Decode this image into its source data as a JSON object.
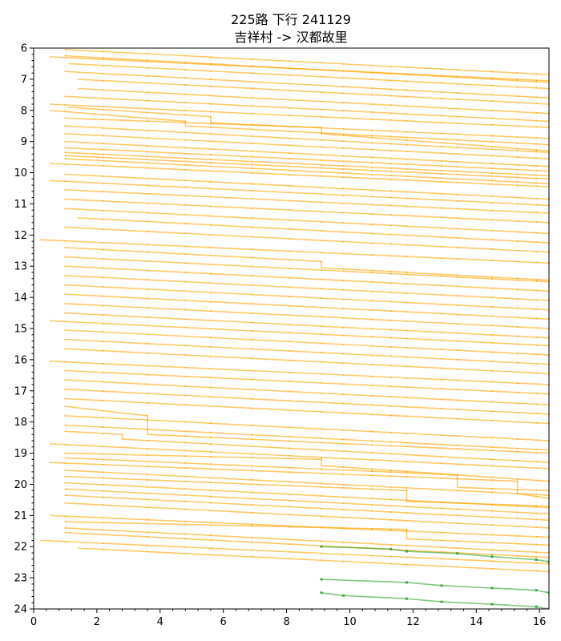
{
  "chart_data": {
    "type": "line",
    "title_line1": "225路 下行 241129",
    "title_line2": "吉祥村 -> 汉都故里",
    "xlabel": "",
    "ylabel": "",
    "xlim": [
      0,
      16.3
    ],
    "ylim": [
      24,
      6
    ],
    "y_inverted": true,
    "grid": false,
    "x_ticks": [
      "0",
      "2",
      "4",
      "6",
      "8",
      "10",
      "12",
      "14",
      "16"
    ],
    "y_ticks": [
      "6",
      "7",
      "8",
      "9",
      "10",
      "11",
      "12",
      "13",
      "14",
      "15",
      "16",
      "17",
      "18",
      "19",
      "20",
      "21",
      "22",
      "23",
      "24"
    ],
    "stops_x": [
      1.0,
      2.2,
      3.6,
      4.8,
      5.6,
      6.9,
      8.1,
      9.1,
      9.8,
      10.7,
      11.3,
      11.8,
      12.9,
      13.4,
      14.5,
      15.3,
      15.9,
      16.3
    ],
    "colors": {
      "scheduled": "#FFA500",
      "highlight": "#2CA02C"
    },
    "series": [
      {
        "color": "orange",
        "x": [
          0.5,
          16.3
        ],
        "y": [
          6.28,
          7.05
        ]
      },
      {
        "color": "orange",
        "x": [
          1.0,
          16.3
        ],
        "y": [
          6.05,
          6.85
        ]
      },
      {
        "color": "orange",
        "x": [
          1.0,
          16.3
        ],
        "y": [
          6.25,
          7.1
        ]
      },
      {
        "color": "orange",
        "x": [
          1.1,
          16.3
        ],
        "y": [
          6.5,
          7.3
        ]
      },
      {
        "color": "orange",
        "x": [
          1.0,
          16.3
        ],
        "y": [
          6.75,
          7.6
        ]
      },
      {
        "color": "orange",
        "x": [
          1.4,
          16.3
        ],
        "y": [
          7.0,
          7.8
        ]
      },
      {
        "color": "orange",
        "x": [
          1.4,
          16.3
        ],
        "y": [
          7.3,
          8.1
        ]
      },
      {
        "color": "orange",
        "x": [
          1.0,
          16.3
        ],
        "y": [
          7.55,
          8.35
        ]
      },
      {
        "color": "orange",
        "x": [
          0.5,
          16.3
        ],
        "y": [
          7.8,
          8.55
        ]
      },
      {
        "color": "orange",
        "x": [
          1.1,
          5.6,
          5.6,
          16.3
        ],
        "y": [
          7.9,
          8.2,
          8.4,
          8.9
        ]
      },
      {
        "color": "orange",
        "x": [
          0.5,
          4.8,
          4.8,
          16.3
        ],
        "y": [
          8.0,
          8.35,
          8.5,
          9.1
        ]
      },
      {
        "color": "orange",
        "x": [
          1.0,
          9.1,
          9.1,
          16.3
        ],
        "y": [
          8.25,
          8.55,
          8.75,
          9.3
        ]
      },
      {
        "color": "orange",
        "x": [
          1.0,
          16.3
        ],
        "y": [
          8.5,
          9.35
        ]
      },
      {
        "color": "orange",
        "x": [
          1.0,
          16.3
        ],
        "y": [
          8.75,
          9.55
        ]
      },
      {
        "color": "orange",
        "x": [
          1.0,
          16.3
        ],
        "y": [
          9.0,
          9.8
        ]
      },
      {
        "color": "orange",
        "x": [
          1.0,
          16.3
        ],
        "y": [
          9.2,
          9.95
        ]
      },
      {
        "color": "orange",
        "x": [
          1.0,
          16.3
        ],
        "y": [
          9.35,
          10.1
        ]
      },
      {
        "color": "orange",
        "x": [
          1.0,
          16.3
        ],
        "y": [
          9.45,
          10.2
        ]
      },
      {
        "color": "orange",
        "x": [
          1.0,
          16.3
        ],
        "y": [
          9.55,
          10.35
        ]
      },
      {
        "color": "orange",
        "x": [
          0.5,
          16.3
        ],
        "y": [
          9.7,
          10.45
        ]
      },
      {
        "color": "orange",
        "x": [
          1.0,
          16.3
        ],
        "y": [
          10.05,
          10.85
        ]
      },
      {
        "color": "orange",
        "x": [
          0.5,
          16.3
        ],
        "y": [
          10.25,
          11.05
        ]
      },
      {
        "color": "orange",
        "x": [
          1.0,
          16.3
        ],
        "y": [
          10.55,
          11.3
        ]
      },
      {
        "color": "orange",
        "x": [
          1.0,
          16.3
        ],
        "y": [
          10.85,
          11.6
        ]
      },
      {
        "color": "orange",
        "x": [
          1.0,
          16.3
        ],
        "y": [
          11.15,
          11.95
        ]
      },
      {
        "color": "orange",
        "x": [
          1.4,
          16.3
        ],
        "y": [
          11.45,
          12.25
        ]
      },
      {
        "color": "orange",
        "x": [
          1.0,
          16.3
        ],
        "y": [
          11.75,
          12.55
        ]
      },
      {
        "color": "orange",
        "x": [
          0.2,
          16.3
        ],
        "y": [
          12.15,
          12.9
        ]
      },
      {
        "color": "orange",
        "x": [
          1.0,
          9.1,
          9.1,
          16.3
        ],
        "y": [
          12.4,
          12.85,
          13.05,
          13.45
        ]
      },
      {
        "color": "orange",
        "x": [
          1.0,
          16.3
        ],
        "y": [
          12.7,
          13.5
        ]
      },
      {
        "color": "orange",
        "x": [
          1.0,
          16.3
        ],
        "y": [
          13.0,
          13.8
        ]
      },
      {
        "color": "orange",
        "x": [
          1.0,
          16.3
        ],
        "y": [
          13.3,
          14.1
        ]
      },
      {
        "color": "orange",
        "x": [
          1.0,
          16.3
        ],
        "y": [
          13.6,
          14.4
        ]
      },
      {
        "color": "orange",
        "x": [
          1.0,
          16.3
        ],
        "y": [
          13.9,
          14.7
        ]
      },
      {
        "color": "orange",
        "x": [
          1.0,
          16.3
        ],
        "y": [
          14.2,
          15.0
        ]
      },
      {
        "color": "orange",
        "x": [
          1.0,
          16.3
        ],
        "y": [
          14.5,
          15.3
        ]
      },
      {
        "color": "orange",
        "x": [
          0.5,
          16.3
        ],
        "y": [
          14.75,
          15.55
        ]
      },
      {
        "color": "orange",
        "x": [
          1.0,
          16.3
        ],
        "y": [
          15.05,
          15.85
        ]
      },
      {
        "color": "orange",
        "x": [
          1.0,
          16.3
        ],
        "y": [
          15.35,
          16.15
        ]
      },
      {
        "color": "orange",
        "x": [
          1.0,
          16.3
        ],
        "y": [
          15.65,
          16.45
        ]
      },
      {
        "color": "orange",
        "x": [
          0.5,
          16.3
        ],
        "y": [
          16.05,
          16.8
        ]
      },
      {
        "color": "orange",
        "x": [
          1.0,
          16.3
        ],
        "y": [
          16.35,
          17.1
        ]
      },
      {
        "color": "orange",
        "x": [
          1.0,
          16.3
        ],
        "y": [
          16.65,
          17.45
        ]
      },
      {
        "color": "orange",
        "x": [
          1.0,
          16.3
        ],
        "y": [
          16.95,
          17.75
        ]
      },
      {
        "color": "orange",
        "x": [
          1.0,
          16.3
        ],
        "y": [
          17.25,
          18.05
        ]
      },
      {
        "color": "orange",
        "x": [
          1.0,
          3.6,
          3.6,
          16.3
        ],
        "y": [
          17.5,
          17.8,
          18.4,
          19.0
        ]
      },
      {
        "color": "orange",
        "x": [
          1.0,
          16.3
        ],
        "y": [
          17.8,
          18.6
        ]
      },
      {
        "color": "orange",
        "x": [
          1.0,
          16.3
        ],
        "y": [
          18.1,
          18.9
        ]
      },
      {
        "color": "orange",
        "x": [
          1.0,
          2.8,
          2.8,
          16.3
        ],
        "y": [
          18.3,
          18.4,
          18.55,
          19.3
        ]
      },
      {
        "color": "orange",
        "x": [
          0.5,
          16.3
        ],
        "y": [
          18.7,
          19.5
        ]
      },
      {
        "color": "orange",
        "x": [
          1.0,
          9.1,
          9.1,
          16.3
        ],
        "y": [
          19.0,
          19.2,
          19.4,
          19.9
        ]
      },
      {
        "color": "orange",
        "x": [
          1.0,
          13.4,
          13.4,
          16.3
        ],
        "y": [
          19.15,
          19.7,
          20.1,
          20.2
        ]
      },
      {
        "color": "orange",
        "x": [
          0.5,
          15.3,
          15.3,
          16.3
        ],
        "y": [
          19.3,
          19.9,
          20.3,
          20.45
        ]
      },
      {
        "color": "orange",
        "x": [
          1.0,
          16.3
        ],
        "y": [
          19.55,
          20.35
        ]
      },
      {
        "color": "orange",
        "x": [
          1.0,
          11.8,
          11.8,
          16.3
        ],
        "y": [
          19.75,
          20.2,
          20.55,
          20.7
        ]
      },
      {
        "color": "orange",
        "x": [
          1.0,
          16.3
        ],
        "y": [
          19.95,
          20.75
        ]
      },
      {
        "color": "orange",
        "x": [
          1.0,
          16.3
        ],
        "y": [
          20.15,
          20.95
        ]
      },
      {
        "color": "orange",
        "x": [
          1.0,
          16.3
        ],
        "y": [
          20.35,
          21.15
        ]
      },
      {
        "color": "orange",
        "x": [
          1.0,
          16.3
        ],
        "y": [
          20.6,
          21.4
        ]
      },
      {
        "color": "orange",
        "x": [
          0.5,
          16.3
        ],
        "y": [
          21.0,
          21.7
        ]
      },
      {
        "color": "orange",
        "x": [
          1.0,
          11.8,
          11.8,
          16.3
        ],
        "y": [
          21.2,
          21.45,
          21.75,
          21.95
        ]
      },
      {
        "color": "orange",
        "x": [
          1.0,
          16.3
        ],
        "y": [
          21.4,
          22.2
        ]
      },
      {
        "color": "orange",
        "x": [
          1.0,
          16.3
        ],
        "y": [
          21.55,
          22.35
        ]
      },
      {
        "color": "orange",
        "x": [
          0.2,
          16.3
        ],
        "y": [
          21.8,
          22.55
        ]
      },
      {
        "color": "orange",
        "x": [
          1.4,
          16.3
        ],
        "y": [
          22.05,
          22.8
        ]
      },
      {
        "color": "green",
        "x": [
          9.1,
          11.3,
          11.8,
          13.4,
          14.5,
          15.9,
          16.3
        ],
        "y": [
          22.0,
          22.08,
          22.15,
          22.22,
          22.32,
          22.42,
          22.48
        ]
      },
      {
        "color": "green",
        "x": [
          9.1,
          11.8,
          12.9,
          14.5,
          15.9,
          16.3
        ],
        "y": [
          23.05,
          23.15,
          23.25,
          23.33,
          23.4,
          23.48
        ]
      },
      {
        "color": "green",
        "x": [
          9.1,
          9.8,
          11.8,
          12.9,
          14.5,
          15.9,
          16.3
        ],
        "y": [
          23.48,
          23.57,
          23.67,
          23.77,
          23.85,
          23.93,
          24.0
        ]
      }
    ]
  }
}
